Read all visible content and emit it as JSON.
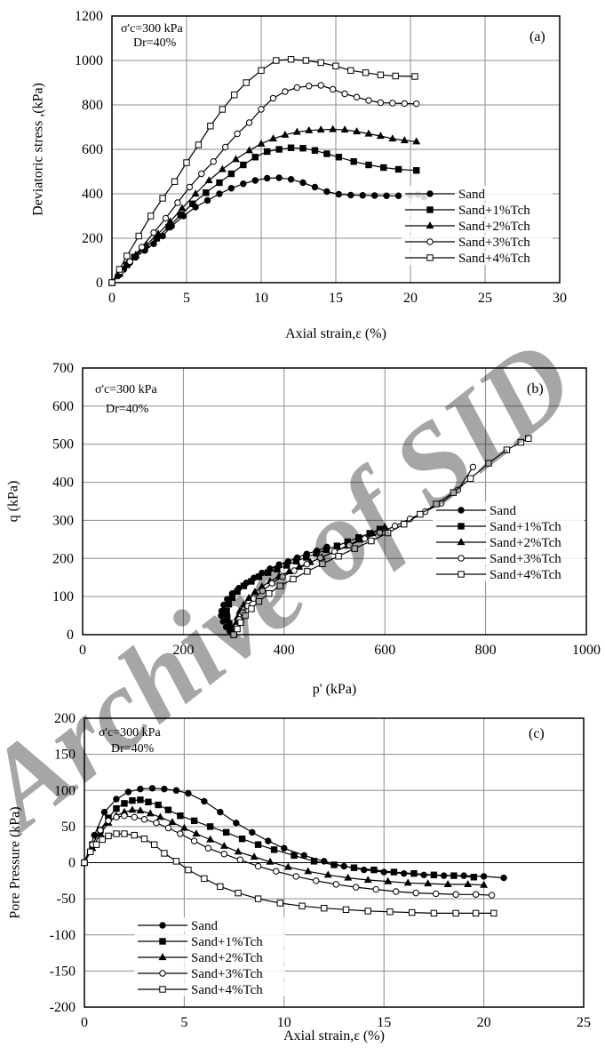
{
  "watermark": "Archive of SID",
  "chart_data": [
    {
      "type": "line",
      "panel_label": "(a)",
      "annotation": [
        "σ'c=300 kPa",
        "Dr=40%"
      ],
      "xlabel": "Axial strain,ε (%)",
      "ylabel": "Deviatoric stress ,(kPa)",
      "xlim": [
        0,
        30
      ],
      "ylim": [
        0,
        1200
      ],
      "xticks": [
        0,
        5,
        10,
        15,
        20,
        25,
        30
      ],
      "yticks": [
        0,
        200,
        400,
        600,
        800,
        1000,
        1200
      ],
      "grid": true,
      "legend_position": "bottom-right",
      "series": [
        {
          "name": "Sand",
          "marker": "circle-filled",
          "x": [
            0,
            0.4,
            0.8,
            1.2,
            1.6,
            2.2,
            2.8,
            3.4,
            4,
            4.8,
            5.6,
            6.4,
            7.2,
            8,
            8.8,
            9.6,
            10.4,
            11.2,
            12,
            12.8,
            13.6,
            14.4,
            15.2,
            16,
            16.8,
            17.6,
            18.4,
            19.2,
            20,
            20.5,
            20.9
          ],
          "y": [
            0,
            30,
            60,
            90,
            115,
            145,
            175,
            210,
            255,
            300,
            340,
            370,
            400,
            425,
            445,
            460,
            470,
            472,
            465,
            450,
            430,
            410,
            398,
            394,
            393,
            392,
            391,
            391,
            392,
            396,
            385
          ]
        },
        {
          "name": "Sand+1%Tch",
          "marker": "square-filled",
          "x": [
            0,
            0.5,
            1,
            1.5,
            2.2,
            3,
            3.8,
            4.6,
            5.4,
            6.3,
            7.2,
            8,
            8.8,
            9.6,
            10.4,
            11.2,
            12,
            12.8,
            13.6,
            14.4,
            15.2,
            16.2,
            17.2,
            18.2,
            19.2,
            20.4
          ],
          "y": [
            0,
            40,
            80,
            115,
            155,
            200,
            250,
            305,
            355,
            405,
            450,
            490,
            530,
            565,
            590,
            600,
            607,
            605,
            595,
            580,
            565,
            545,
            530,
            518,
            510,
            505
          ]
        },
        {
          "name": "Sand+2%Tch",
          "marker": "triangle-filled",
          "x": [
            0,
            0.5,
            1,
            1.6,
            2.3,
            3.1,
            3.9,
            4.7,
            5.6,
            6.5,
            7.4,
            8.3,
            9.2,
            10,
            10.8,
            11.6,
            12.4,
            13.2,
            14,
            14.8,
            15.6,
            16.4,
            17.2,
            18,
            18.8,
            19.6,
            20.4
          ],
          "y": [
            0,
            42,
            85,
            125,
            170,
            220,
            275,
            335,
            400,
            460,
            510,
            555,
            595,
            625,
            648,
            665,
            678,
            685,
            688,
            690,
            688,
            680,
            670,
            660,
            648,
            640,
            635
          ]
        },
        {
          "name": "Sand+3%Tch",
          "marker": "circle-open",
          "x": [
            0,
            0.6,
            1.2,
            2,
            2.8,
            3.6,
            4.4,
            5.2,
            6,
            6.8,
            7.6,
            8.4,
            9.2,
            10,
            10.8,
            11.6,
            12.4,
            13.2,
            14,
            14.8,
            15.6,
            16.4,
            17.2,
            18,
            18.8,
            19.6,
            20.4
          ],
          "y": [
            0,
            50,
            95,
            160,
            225,
            290,
            360,
            430,
            490,
            545,
            610,
            670,
            720,
            780,
            830,
            860,
            878,
            885,
            888,
            870,
            850,
            835,
            820,
            810,
            808,
            806,
            805
          ]
        },
        {
          "name": "Sand+4%Tch",
          "marker": "square-open",
          "x": [
            0,
            0.5,
            1,
            1.8,
            2.6,
            3.4,
            4.2,
            5,
            5.8,
            6.6,
            7.4,
            8.2,
            9,
            10,
            11,
            12,
            13,
            14,
            15,
            16,
            17,
            18,
            19,
            20.3
          ],
          "y": [
            0,
            60,
            120,
            210,
            300,
            380,
            455,
            540,
            620,
            705,
            780,
            845,
            900,
            955,
            1000,
            1005,
            1000,
            990,
            975,
            955,
            945,
            935,
            930,
            928
          ]
        }
      ]
    },
    {
      "type": "line",
      "panel_label": "(b)",
      "annotation": [
        "σ'c=300 kPa",
        "Dr=40%"
      ],
      "xlabel": "p' (kPa)",
      "ylabel": "q (kPa)",
      "xlim": [
        0,
        1000
      ],
      "ylim": [
        0,
        700
      ],
      "xticks": [
        0,
        200,
        400,
        600,
        800,
        1000
      ],
      "yticks": [
        0,
        100,
        200,
        300,
        400,
        500,
        600,
        700
      ],
      "grid": true,
      "legend_position": "right",
      "series": [
        {
          "name": "Sand",
          "marker": "circle-filled",
          "x": [
            300,
            292,
            285,
            279,
            275,
            276,
            280,
            287,
            297,
            310,
            325,
            340,
            356,
            372,
            390,
            408,
            426,
            445,
            465,
            485
          ],
          "y": [
            0,
            10,
            20,
            35,
            50,
            62,
            78,
            93,
            108,
            122,
            136,
            149,
            162,
            173,
            184,
            192,
            202,
            212,
            220,
            230
          ]
        },
        {
          "name": "Sand+1%Tch",
          "marker": "square-filled",
          "x": [
            300,
            296,
            291,
            287,
            286,
            290,
            297,
            307,
            320,
            335,
            350,
            368,
            386,
            405,
            424,
            444,
            464,
            484,
            505,
            526,
            548,
            570,
            590
          ],
          "y": [
            0,
            15,
            30,
            45,
            62,
            80,
            97,
            113,
            128,
            140,
            152,
            163,
            172,
            182,
            193,
            203,
            213,
            223,
            233,
            244,
            255,
            266,
            277
          ]
        },
        {
          "name": "Sand+2%Tch",
          "marker": "triangle-filled",
          "x": [
            300,
            302,
            304,
            307,
            312,
            320,
            330,
            342,
            356,
            372,
            390,
            410,
            430,
            452,
            475,
            500,
            525,
            550,
            575,
            600
          ],
          "y": [
            0,
            15,
            30,
            45,
            62,
            79,
            96,
            112,
            126,
            140,
            153,
            166,
            178,
            190,
            203,
            218,
            233,
            249,
            266,
            283
          ]
        },
        {
          "name": "Sand+3%Tch",
          "marker": "circle-open",
          "x": [
            300,
            305,
            311,
            318,
            327,
            340,
            357,
            376,
            397,
            420,
            445,
            472,
            500,
            530,
            560,
            590,
            620,
            650,
            680,
            712,
            745,
            775
          ],
          "y": [
            0,
            20,
            40,
            58,
            75,
            95,
            115,
            135,
            152,
            168,
            185,
            202,
            218,
            235,
            252,
            268,
            285,
            304,
            323,
            345,
            380,
            440
          ]
        },
        {
          "name": "Sand+4%Tch",
          "marker": "square-open",
          "x": [
            300,
            307,
            314,
            323,
            335,
            350,
            370,
            392,
            418,
            446,
            476,
            508,
            540,
            573,
            606,
            638,
            670,
            702,
            736,
            770,
            806,
            842,
            870,
            885
          ],
          "y": [
            0,
            15,
            32,
            50,
            68,
            87,
            108,
            128,
            146,
            166,
            186,
            206,
            226,
            246,
            267,
            290,
            316,
            343,
            373,
            410,
            450,
            485,
            505,
            515
          ]
        }
      ]
    },
    {
      "type": "line",
      "panel_label": "(c)",
      "annotation": [
        "σ'c=300 kPa",
        "Dr=40%"
      ],
      "xlabel": "Axial strain,ε (%)",
      "ylabel": "Pore Pressure (kPa)",
      "xlim": [
        0,
        25
      ],
      "ylim": [
        -200,
        200
      ],
      "xticks": [
        0,
        5,
        10,
        15,
        20,
        25
      ],
      "yticks": [
        -200,
        -150,
        -100,
        -50,
        0,
        50,
        100,
        150,
        200
      ],
      "grid": true,
      "legend_position": "bottom-left",
      "series": [
        {
          "name": "Sand",
          "marker": "circle-filled",
          "x": [
            0,
            0.5,
            1,
            1.6,
            2.2,
            2.8,
            3.4,
            4,
            4.6,
            5.2,
            6,
            6.8,
            7.6,
            8.4,
            9.2,
            10,
            11,
            12,
            13,
            14,
            15,
            16,
            17,
            18,
            19,
            20,
            21
          ],
          "y": [
            0,
            38,
            70,
            88,
            98,
            102,
            103,
            102,
            100,
            96,
            85,
            70,
            55,
            42,
            30,
            20,
            10,
            2,
            -5,
            -10,
            -13,
            -15,
            -17,
            -18,
            -18,
            -19,
            -21
          ]
        },
        {
          "name": "Sand+1%Tch",
          "marker": "square-filled",
          "x": [
            0,
            0.4,
            0.8,
            1.2,
            1.6,
            2,
            2.4,
            2.8,
            3.2,
            3.7,
            4.2,
            4.8,
            5.5,
            6.3,
            7.1,
            7.9,
            8.7,
            9.5,
            10.5,
            11.5,
            12.5,
            13.5,
            14.5,
            15.5,
            16.5,
            17.5,
            18.5,
            19.5
          ],
          "y": [
            0,
            25,
            45,
            62,
            75,
            82,
            86,
            87,
            84,
            80,
            73,
            65,
            58,
            50,
            42,
            33,
            25,
            18,
            10,
            2,
            -3,
            -7,
            -10,
            -13,
            -15,
            -17,
            -18,
            -20
          ]
        },
        {
          "name": "Sand+2%Tch",
          "marker": "triangle-filled",
          "x": [
            0,
            0.4,
            0.8,
            1.2,
            1.6,
            2,
            2.4,
            2.8,
            3.3,
            3.8,
            4.4,
            5,
            5.6,
            6.3,
            7,
            7.7,
            8.5,
            9.3,
            10.2,
            11.2,
            12.2,
            13.2,
            14.2,
            15.2,
            16.2,
            17.2,
            18.2,
            19.2,
            20
          ],
          "y": [
            0,
            20,
            40,
            55,
            65,
            70,
            73,
            72,
            68,
            63,
            56,
            48,
            40,
            32,
            23,
            15,
            8,
            1,
            -6,
            -12,
            -17,
            -21,
            -24,
            -26,
            -28,
            -29,
            -30,
            -30,
            -31
          ]
        },
        {
          "name": "Sand+3%Tch",
          "marker": "circle-open",
          "x": [
            0,
            0.4,
            0.8,
            1.2,
            1.6,
            2,
            2.5,
            3,
            3.6,
            4.2,
            4.8,
            5.5,
            6.2,
            7,
            7.8,
            8.7,
            9.6,
            10.6,
            11.6,
            12.6,
            13.6,
            14.6,
            15.6,
            16.6,
            17.6,
            18.6,
            19.6,
            20.4
          ],
          "y": [
            0,
            25,
            45,
            58,
            63,
            65,
            63,
            60,
            55,
            48,
            40,
            30,
            20,
            12,
            4,
            -5,
            -12,
            -19,
            -25,
            -30,
            -34,
            -37,
            -40,
            -42,
            -43,
            -44,
            -44,
            -45
          ]
        },
        {
          "name": "Sand+4%Tch",
          "marker": "square-open",
          "x": [
            0,
            0.3,
            0.6,
            0.9,
            1.2,
            1.6,
            2,
            2.5,
            3,
            3.5,
            4,
            4.6,
            5.2,
            6,
            6.8,
            7.7,
            8.7,
            9.8,
            10.9,
            12,
            13.1,
            14.2,
            15.3,
            16.4,
            17.5,
            18.6,
            19.6,
            20.5
          ],
          "y": [
            0,
            15,
            25,
            32,
            37,
            40,
            40,
            38,
            33,
            25,
            13,
            2,
            -10,
            -22,
            -33,
            -42,
            -50,
            -56,
            -60,
            -63,
            -65,
            -67,
            -68,
            -69,
            -70,
            -70,
            -70,
            -70
          ]
        }
      ]
    }
  ]
}
